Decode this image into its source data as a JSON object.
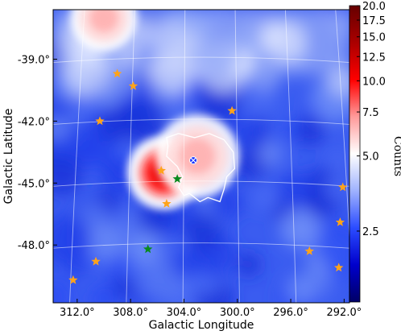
{
  "chart_data": {
    "type": "heatmap",
    "title": "",
    "xlabel": "Galactic Longitude",
    "ylabel": "Galactic Latitude",
    "x_ticks": [
      "312.0°",
      "308.0°",
      "304.0°",
      "300.0°",
      "296.0°",
      "292.0°"
    ],
    "y_ticks": [
      "-39.0°",
      "-42.0°",
      "-45.0°",
      "-48.0°"
    ],
    "xlim_deg": [
      313.8,
      291.6
    ],
    "ylim_deg": [
      -50.8,
      -36.6
    ],
    "colorbar": {
      "label": "Counts",
      "scale": "log",
      "range": [
        1.3,
        20.0
      ],
      "ticks": [
        "20.0",
        "17.5",
        "15.0",
        "12.5",
        "10.0",
        "7.5",
        "5.0",
        "2.5"
      ],
      "tick_values": [
        20.0,
        17.5,
        15.0,
        12.5,
        10.0,
        7.5,
        5.0,
        2.5
      ],
      "colormap": [
        "#000066",
        "#0000cc",
        "#2b4cff",
        "#9fb2ff",
        "#ffffff",
        "#ff9a9a",
        "#ff0000",
        "#aa0000",
        "#660000"
      ]
    },
    "sources": [
      {
        "type": "hotspot",
        "l": 305.5,
        "b": -44.5,
        "peak_counts": 20.0
      },
      {
        "type": "hotspot",
        "l": 303.0,
        "b": -43.7,
        "peak_counts": 7.0
      },
      {
        "type": "hotspot",
        "l": 310.0,
        "b": -37.0,
        "peak_counts": 6.0
      }
    ],
    "markers": [
      {
        "kind": "orange-star",
        "l": 309.0,
        "b": -39.7
      },
      {
        "kind": "orange-star",
        "l": 307.8,
        "b": -40.3
      },
      {
        "kind": "orange-star",
        "l": 310.3,
        "b": -42.0
      },
      {
        "kind": "orange-star",
        "l": 300.4,
        "b": -41.5
      },
      {
        "kind": "orange-star",
        "l": 305.7,
        "b": -44.4
      },
      {
        "kind": "orange-star",
        "l": 305.3,
        "b": -46.0
      },
      {
        "kind": "orange-star",
        "l": 292.1,
        "b": -45.2
      },
      {
        "kind": "orange-star",
        "l": 292.3,
        "b": -46.9
      },
      {
        "kind": "orange-star",
        "l": 294.6,
        "b": -48.3
      },
      {
        "kind": "orange-star",
        "l": 292.4,
        "b": -49.1
      },
      {
        "kind": "orange-star",
        "l": 310.6,
        "b": -48.8
      },
      {
        "kind": "orange-star",
        "l": 312.3,
        "b": -49.7
      },
      {
        "kind": "green-star",
        "l": 304.5,
        "b": -44.8
      },
      {
        "kind": "green-star",
        "l": 306.7,
        "b": -48.2
      },
      {
        "kind": "blue-target",
        "l": 303.3,
        "b": -43.9
      }
    ],
    "contour": {
      "color": "#ffffff",
      "points": [
        [
          305.3,
          -42.8
        ],
        [
          304.4,
          -42.6
        ],
        [
          303.2,
          -42.8
        ],
        [
          302.1,
          -42.6
        ],
        [
          301.0,
          -42.9
        ],
        [
          300.3,
          -43.5
        ],
        [
          300.2,
          -44.3
        ],
        [
          300.8,
          -44.7
        ],
        [
          301.0,
          -45.3
        ],
        [
          301.3,
          -45.9
        ],
        [
          302.2,
          -45.7
        ],
        [
          302.8,
          -45.9
        ],
        [
          303.6,
          -45.5
        ],
        [
          304.0,
          -45.6
        ],
        [
          304.4,
          -45.2
        ],
        [
          304.1,
          -44.7
        ],
        [
          304.5,
          -44.2
        ],
        [
          305.3,
          -43.7
        ],
        [
          305.2,
          -43.2
        ],
        [
          305.3,
          -42.8
        ]
      ]
    }
  }
}
